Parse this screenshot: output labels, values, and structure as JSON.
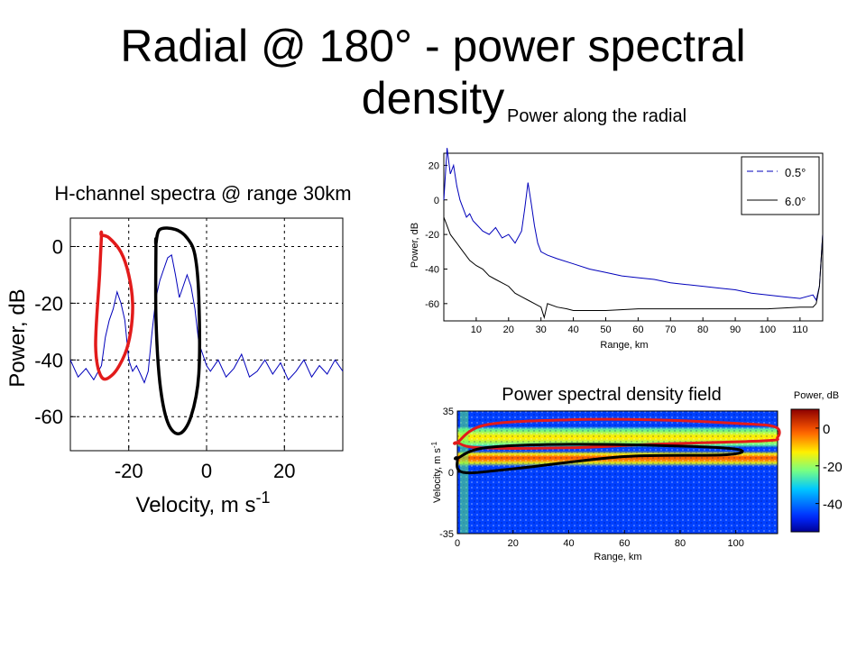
{
  "title": {
    "line1": "Radial @ 180° - power spectral",
    "line2": "density",
    "subtitle": "Power along the radial"
  },
  "chart_data": [
    {
      "type": "line",
      "title": "H-channel spectra @ range 30km",
      "xlabel": "Velocity, m s",
      "xlabel_sup": "-1",
      "ylabel": "Power, dB",
      "xlim": [
        -35,
        35
      ],
      "ylim": [
        -72,
        10
      ],
      "x_ticks": [
        -20,
        0,
        20
      ],
      "x_tick_labels": [
        "-20",
        "0",
        "20"
      ],
      "y_ticks": [
        0,
        -20,
        -40,
        -60
      ],
      "y_tick_labels": [
        "0",
        "-20",
        "-40",
        "-60"
      ],
      "grid": true,
      "series": [
        {
          "color": "#0000bb",
          "x": [
            -35,
            -33,
            -31,
            -29,
            -27,
            -26,
            -25,
            -24,
            -23,
            -22,
            -21,
            -20,
            -19,
            -18,
            -17,
            -16,
            -15,
            -14,
            -13,
            -12,
            -11,
            -10,
            -9,
            -8,
            -7,
            -6,
            -5,
            -4,
            -3,
            -2,
            -1,
            0,
            1,
            3,
            5,
            7,
            9,
            11,
            13,
            15,
            17,
            19,
            21,
            23,
            25,
            27,
            29,
            31,
            33,
            35
          ],
          "y": [
            -40,
            -46,
            -43,
            -47,
            -42,
            -32,
            -26,
            -22,
            -16,
            -20,
            -26,
            -40,
            -44,
            -42,
            -45,
            -48,
            -44,
            -30,
            -18,
            -12,
            -8,
            -4,
            -3,
            -10,
            -18,
            -14,
            -10,
            -14,
            -22,
            -34,
            -38,
            -42,
            -44,
            -40,
            -46,
            -43,
            -38,
            -46,
            -44,
            -40,
            -45,
            -41,
            -47,
            -44,
            -40,
            -46,
            -42,
            -45,
            -40,
            -44
          ]
        }
      ],
      "annotations": [
        {
          "shape": "outline",
          "color": "#e21b1b",
          "x": [
            -27,
            -25,
            -22,
            -20,
            -19,
            -19.5,
            -21,
            -24,
            -27,
            -28.5,
            -27.5,
            -27
          ],
          "y": [
            4,
            3,
            -2,
            -10,
            -20,
            -30,
            -38,
            -45,
            -46,
            -35,
            -10,
            4
          ]
        },
        {
          "shape": "outline",
          "color": "#000000",
          "x": [
            -13,
            -12,
            -8,
            -5,
            -3,
            -2,
            -2,
            -4,
            -7,
            -10,
            -12,
            -13,
            -13
          ],
          "y": [
            1,
            6,
            6,
            3,
            -3,
            -18,
            -45,
            -60,
            -66,
            -62,
            -48,
            -25,
            1
          ]
        }
      ]
    },
    {
      "type": "line",
      "title": "",
      "xlabel": "Range, km",
      "ylabel": "Power, dB",
      "xlim": [
        0,
        117
      ],
      "ylim": [
        -70,
        27
      ],
      "x_ticks": [
        10,
        20,
        30,
        40,
        50,
        60,
        70,
        80,
        90,
        100,
        110
      ],
      "x_tick_labels": [
        "10",
        "20",
        "30",
        "40",
        "50",
        "60",
        "70",
        "80",
        "90",
        "100",
        "110"
      ],
      "y_ticks": [
        20,
        0,
        -20,
        -40,
        -60
      ],
      "y_tick_labels": [
        "20",
        "0",
        "-20",
        "-40",
        "-60"
      ],
      "grid": false,
      "legend_placement": "top-right",
      "series": [
        {
          "name": "0.5°",
          "color": "#0000bb",
          "dash": "dash",
          "x": [
            0,
            1,
            2,
            3,
            4,
            5,
            6,
            7,
            8,
            9,
            10,
            12,
            14,
            16,
            18,
            20,
            22,
            24,
            25,
            26,
            27,
            28,
            29,
            30,
            32,
            35,
            40,
            45,
            50,
            55,
            60,
            65,
            70,
            75,
            80,
            85,
            90,
            95,
            100,
            105,
            110,
            114,
            115,
            116,
            117
          ],
          "y": [
            0,
            30,
            15,
            20,
            8,
            0,
            -5,
            -10,
            -8,
            -12,
            -14,
            -18,
            -20,
            -16,
            -22,
            -20,
            -25,
            -18,
            -5,
            10,
            -2,
            -15,
            -25,
            -30,
            -32,
            -34,
            -37,
            -40,
            -42,
            -44,
            -45,
            -46,
            -48,
            -49,
            -50,
            -51,
            -52,
            -54,
            -55,
            -56,
            -57,
            -55,
            -58,
            -50,
            -20
          ]
        },
        {
          "name": "6.0°",
          "color": "#000000",
          "dash": "solid",
          "x": [
            0,
            2,
            4,
            6,
            8,
            10,
            12,
            14,
            16,
            18,
            20,
            22,
            24,
            26,
            28,
            30,
            31,
            32,
            35,
            38,
            40,
            45,
            50,
            60,
            70,
            80,
            90,
            100,
            110,
            114,
            115,
            116,
            117
          ],
          "y": [
            -10,
            -20,
            -25,
            -30,
            -35,
            -38,
            -40,
            -44,
            -46,
            -48,
            -50,
            -54,
            -56,
            -58,
            -60,
            -62,
            -68,
            -60,
            -62,
            -63,
            -64,
            -64,
            -64,
            -63,
            -63,
            -63,
            -63,
            -63,
            -62,
            -62,
            -60,
            -50,
            -20
          ]
        }
      ]
    },
    {
      "type": "heatmap",
      "title": "Power spectral density field",
      "xlabel": "Range, km",
      "ylabel": "Velocity, m s",
      "ylabel_sup": "-1",
      "xlim": [
        0,
        115
      ],
      "ylim": [
        -35,
        35
      ],
      "x_ticks": [
        0,
        20,
        40,
        60,
        80,
        100
      ],
      "x_tick_labels": [
        "0",
        "20",
        "40",
        "60",
        "80",
        "100"
      ],
      "y_ticks": [
        35,
        0,
        -35
      ],
      "y_tick_labels": [
        "35",
        "0",
        "-35"
      ],
      "colorbar": {
        "label": "Power, dB",
        "ticks": [
          0,
          -20,
          -40
        ],
        "tick_labels": [
          "0",
          "-20",
          "-40"
        ],
        "range": [
          -55,
          10
        ]
      },
      "bands": [
        {
          "v_center": 20,
          "v_halfwidth": 6,
          "level_db": -10
        },
        {
          "v_center": 8,
          "v_halfwidth": 3,
          "level_db": 3
        },
        {
          "v_center": 0,
          "v_halfwidth": 35,
          "level_db": -45
        }
      ],
      "annotations": [
        {
          "shape": "outline",
          "color": "#e21b1b",
          "x": [
            0,
            10,
            40,
            70,
            100,
            114,
            115,
            110,
            70,
            40,
            8,
            0
          ],
          "y": [
            17,
            27,
            30,
            30,
            28,
            26,
            20,
            18,
            16,
            14,
            14,
            17
          ]
        },
        {
          "shape": "outline",
          "color": "#000000",
          "x": [
            0,
            10,
            40,
            80,
            101,
            96,
            60,
            20,
            2,
            0
          ],
          "y": [
            8,
            14,
            16,
            15,
            13,
            10,
            9,
            2,
            0,
            8
          ]
        }
      ]
    }
  ]
}
